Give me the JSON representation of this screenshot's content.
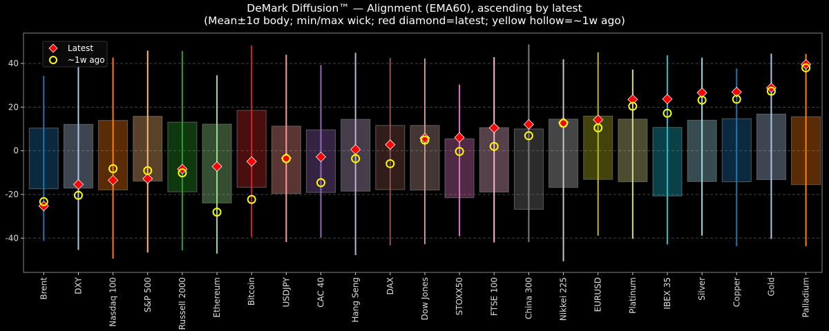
{
  "chart_data": {
    "type": "range-box",
    "title": "DeMark Diffusion™ — Alignment (EMA60), ascending by latest",
    "subtitle": "(Mean±1σ body; min/max wick; red diamond=latest; yellow hollow=~1w ago)",
    "xlabel": "",
    "ylabel": "",
    "ylim": [
      -55.7,
      53.9
    ],
    "yticks": [
      -40,
      -20,
      0,
      20,
      40
    ],
    "grid": "horizontal dashed",
    "legend_position": "top-left",
    "legend": [
      {
        "label": "Latest",
        "marker": "diamond",
        "color": "#ff0000"
      },
      {
        "label": "~1w ago",
        "marker": "hollow-circle",
        "color": "#ffff00"
      }
    ],
    "categories": [
      "Brent",
      "DXY",
      "Nasdaq 100",
      "S&P 500",
      "Russell 2000",
      "Ethereum",
      "Bitcoin",
      "USDJPY",
      "CAC 40",
      "Hang Seng",
      "DAX",
      "Dow Jones",
      "STOXX50",
      "FTSE 100",
      "China 300",
      "Nikkei 225",
      "EURUSD",
      "Platinum",
      "IBEX 35",
      "Silver",
      "Copper",
      "Gold",
      "Palladium"
    ],
    "colors": [
      "#1f77b4",
      "#aec7e8",
      "#ff7f0e",
      "#ffbb78",
      "#2ca02c",
      "#98df8a",
      "#d62728",
      "#ff9896",
      "#9467bd",
      "#c5b0d5",
      "#8c564b",
      "#c49c94",
      "#e377c2",
      "#f7b6d2",
      "#7f7f7f",
      "#c7c7c7",
      "#bcbd22",
      "#dbdb8d",
      "#17becf",
      "#9edae5",
      "#1f77b4",
      "#aec7e8",
      "#ff7f0e"
    ],
    "min": [
      -41.2,
      -45.4,
      -49.4,
      -46.6,
      -45.6,
      -47.1,
      -39.5,
      -41.8,
      -39.8,
      -47.8,
      -43.3,
      -42.8,
      -39.1,
      -42.0,
      -41.8,
      -50.6,
      -38.9,
      -40.3,
      -42.9,
      -38.9,
      -43.7,
      -40.4,
      -43.7
    ],
    "max": [
      34.3,
      39.3,
      42.7,
      45.9,
      45.7,
      34.6,
      48.2,
      44.0,
      39.3,
      44.9,
      42.5,
      42.3,
      30.3,
      42.9,
      48.7,
      41.9,
      45.1,
      37.2,
      43.7,
      42.7,
      37.7,
      44.5,
      44.4
    ],
    "box_low": [
      -17.4,
      -17.1,
      -17.9,
      -13.9,
      -18.8,
      -23.9,
      -16.7,
      -19.6,
      -19.1,
      -18.5,
      -17.8,
      -18.0,
      -21.5,
      -18.9,
      -26.8,
      -16.8,
      -13.1,
      -14.2,
      -20.7,
      -14.1,
      -14.2,
      -13.2,
      -15.5
    ],
    "box_high": [
      10.4,
      12.1,
      13.9,
      15.8,
      13.1,
      12.2,
      18.5,
      11.3,
      9.6,
      14.4,
      11.6,
      11.6,
      5.5,
      10.6,
      10.0,
      14.5,
      15.9,
      14.5,
      10.7,
      14.0,
      14.7,
      16.8,
      15.6
    ],
    "latest": [
      -25.3,
      -15.4,
      -13.5,
      -12.8,
      -8.4,
      -7.2,
      -4.9,
      -3.4,
      -2.8,
      0.6,
      2.8,
      5.8,
      6.1,
      10.5,
      12.1,
      12.9,
      14.2,
      23.5,
      23.7,
      26.6,
      26.9,
      28.8,
      39.6
    ],
    "week_ago": [
      -23.3,
      -20.4,
      -8.2,
      -9.1,
      -10.1,
      -28.1,
      -22.3,
      -3.6,
      -14.6,
      -3.6,
      -5.9,
      4.9,
      -0.3,
      2.0,
      6.9,
      12.6,
      10.5,
      20.4,
      17.2,
      23.2,
      23.6,
      27.3,
      38.0
    ]
  }
}
